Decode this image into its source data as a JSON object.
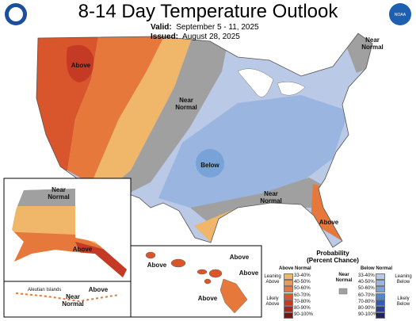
{
  "header": {
    "title": "8-14 Day Temperature Outlook",
    "valid_label": "Valid:",
    "valid_dates": "September 5 - 11, 2025",
    "issued_label": "Issued:",
    "issued_date": "August 28, 2025"
  },
  "logos": {
    "noaa": "NOAA"
  },
  "map_labels": {
    "conus": [
      "Above",
      "Near Normal",
      "Near Normal",
      "Below",
      "Near Normal",
      "Above"
    ],
    "alaska": [
      "Near Normal",
      "Above"
    ],
    "aleutians": {
      "title": "Aleutian Islands",
      "labels": [
        "Above",
        "Near Normal"
      ]
    },
    "hawaii": [
      "Above",
      "Above",
      "Above",
      "Above"
    ]
  },
  "legend": {
    "title": "Probability",
    "subtitle": "(Percent Chance)",
    "above": {
      "heading": "Above Normal",
      "ranges": [
        {
          "label": "33-40%",
          "color": "#f0b66a"
        },
        {
          "label": "40-50%",
          "color": "#ec9a4e"
        },
        {
          "label": "50-60%",
          "color": "#e5783a"
        },
        {
          "label": "60-70%",
          "color": "#d9552b"
        },
        {
          "label": "70-80%",
          "color": "#c43a25"
        },
        {
          "label": "80-90%",
          "color": "#9e2a1f"
        },
        {
          "label": "90-100%",
          "color": "#6e1812"
        }
      ]
    },
    "near": {
      "heading": "Near Normal",
      "color": "#a0a0a0"
    },
    "below": {
      "heading": "Below Normal",
      "ranges": [
        {
          "label": "33-40%",
          "color": "#b9c9e6"
        },
        {
          "label": "40-50%",
          "color": "#99b5e0"
        },
        {
          "label": "50-60%",
          "color": "#77a3d9"
        },
        {
          "label": "60-70%",
          "color": "#4e88cf"
        },
        {
          "label": "70-80%",
          "color": "#2f5fb5"
        },
        {
          "label": "80-90%",
          "color": "#27408d"
        },
        {
          "label": "90-100%",
          "color": "#1f2460"
        }
      ]
    },
    "leaning_above": "Leaning Above",
    "likely_above": "Likely Above",
    "leaning_below": "Leaning Below",
    "likely_below": "Likely Below"
  }
}
